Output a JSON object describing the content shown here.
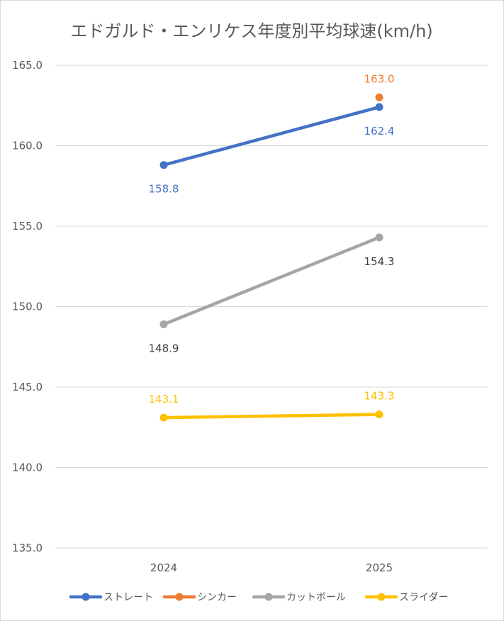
{
  "chart_data": {
    "type": "line",
    "title": "エドガルド・エンリケス年度別平均球速(km/h)",
    "x": [
      "2024",
      "2025"
    ],
    "ylim": [
      135.0,
      165.0
    ],
    "ytick_step": 5.0,
    "ytick_labels": [
      "135.0",
      "140.0",
      "145.0",
      "150.0",
      "155.0",
      "160.0",
      "165.0"
    ],
    "grid": true,
    "legend_position": "bottom",
    "series": [
      {
        "name": "ストレート",
        "color": "#4472C4",
        "values": [
          158.8,
          162.4
        ],
        "labels": [
          "158.8",
          "162.4"
        ],
        "label_pos": [
          "below",
          "below"
        ]
      },
      {
        "name": "シンカー",
        "color": "#ED7D31",
        "values": [
          null,
          163.0
        ],
        "labels": [
          null,
          "163.0"
        ],
        "label_pos": [
          null,
          "above"
        ]
      },
      {
        "name": "カットボール",
        "color": "#A5A5A5",
        "label_color": "#404040",
        "values": [
          148.9,
          154.3
        ],
        "labels": [
          "148.9",
          "154.3"
        ],
        "label_pos": [
          "below",
          "below"
        ]
      },
      {
        "name": "スライダー",
        "color": "#FFC000",
        "values": [
          143.1,
          143.3
        ],
        "labels": [
          "143.1",
          "143.3"
        ],
        "label_pos": [
          "above",
          "above"
        ]
      }
    ]
  }
}
